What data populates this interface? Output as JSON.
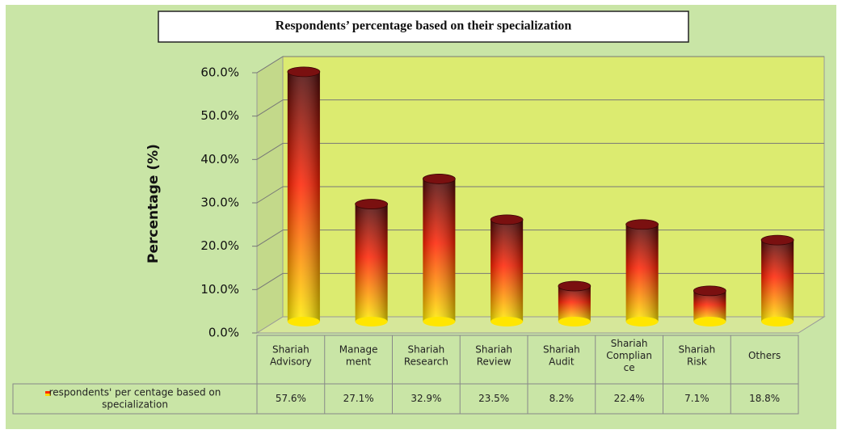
{
  "chart_data": {
    "type": "bar3d",
    "title": "Respondents’ percentage based on their specialization",
    "y_label": "Percentage (%)",
    "categories": [
      "Shariah Advisory",
      "Manage ment",
      "Shariah Research",
      "Shariah Review",
      "Shariah Audit",
      "Shariah Complian ce",
      "Shariah Risk",
      "Others"
    ],
    "series": [
      {
        "name": "respondents' per centage based on specialization",
        "color": "#ff2a00",
        "values": [
          57.6,
          27.1,
          32.9,
          23.5,
          8.2,
          22.4,
          7.1,
          18.8
        ],
        "value_labels": [
          "57.6%",
          "27.1%",
          "32.9%",
          "23.5%",
          "8.2%",
          "22.4%",
          "7.1%",
          "18.8%"
        ]
      }
    ],
    "ylim": [
      0,
      60
    ],
    "yticks": [
      {
        "value": 0,
        "label": "0.0%"
      },
      {
        "value": 10,
        "label": "10.0%"
      },
      {
        "value": 20,
        "label": "20.0%"
      },
      {
        "value": 30,
        "label": "30.0%"
      },
      {
        "value": 40,
        "label": "40.0%"
      },
      {
        "value": 50,
        "label": "50.0%"
      },
      {
        "value": 60,
        "label": "60.0%"
      }
    ],
    "grid": true
  }
}
